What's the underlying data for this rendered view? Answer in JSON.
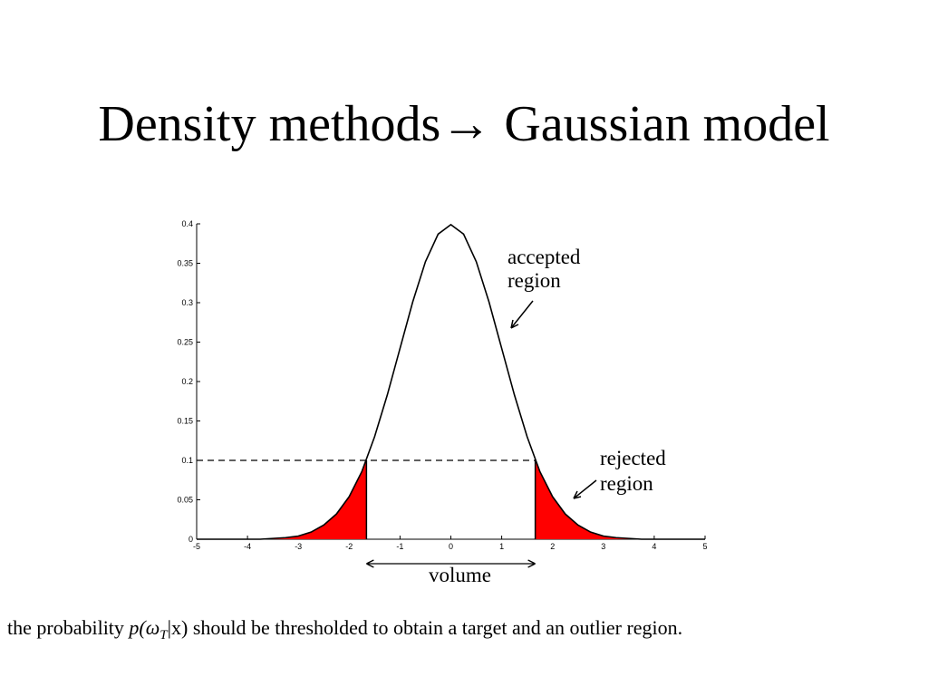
{
  "title": "Density methods→ Gaussian model",
  "chart_data": {
    "type": "line",
    "x": [
      -5,
      -4.75,
      -4.5,
      -4.25,
      -4,
      -3.75,
      -3.5,
      -3.25,
      -3,
      -2.75,
      -2.5,
      -2.25,
      -2,
      -1.75,
      -1.5,
      -1.25,
      -1,
      -0.75,
      -0.5,
      -0.25,
      0,
      0.25,
      0.5,
      0.75,
      1,
      1.25,
      1.5,
      1.75,
      2,
      2.25,
      2.5,
      2.75,
      3,
      3.25,
      3.5,
      3.75,
      4,
      4.25,
      4.5,
      4.75,
      5
    ],
    "series": [
      {
        "color": "#000000",
        "values": [
          0,
          0,
          0,
          0,
          0,
          0,
          0.001,
          0.002,
          0.004,
          0.009,
          0.018,
          0.032,
          0.054,
          0.086,
          0.13,
          0.183,
          0.242,
          0.301,
          0.352,
          0.387,
          0.399,
          0.387,
          0.352,
          0.301,
          0.242,
          0.183,
          0.13,
          0.086,
          0.054,
          0.032,
          0.018,
          0.009,
          0.004,
          0.002,
          0.001,
          0,
          0,
          0,
          0,
          0,
          0
        ]
      }
    ],
    "xlim": [
      -5,
      5
    ],
    "xticks": [
      -5,
      -4,
      -3,
      -2,
      -1,
      0,
      1,
      2,
      3,
      4,
      5
    ],
    "ylim": [
      0,
      0.4
    ],
    "yticks": [
      0,
      0.05,
      0.1,
      0.15,
      0.2,
      0.25,
      0.3,
      0.35,
      0.4
    ],
    "threshold": 0.1,
    "rejected_x": [
      -1.66,
      1.66
    ],
    "fill_color": "#ff0000",
    "accepted_label": [
      "accepted",
      "region"
    ],
    "rejected_label": [
      "rejected",
      "region"
    ],
    "volume_label": "volume"
  },
  "caption": {
    "before": "the probability ",
    "math": "p(ω",
    "sub": "T",
    "after": "|x) should be thresholded to obtain a target and an outlier region."
  }
}
